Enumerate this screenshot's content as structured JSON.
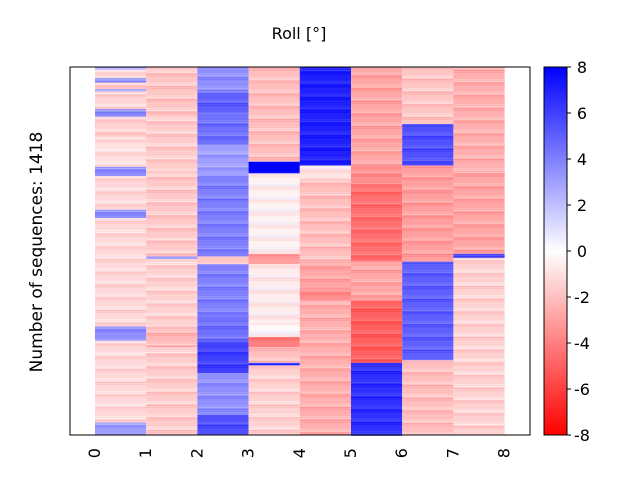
{
  "chart_data": {
    "type": "heatmap",
    "title": "Roll [°]",
    "xlabel": "",
    "ylabel": "Number of sequences: 1418",
    "x_tick_labels": [
      "0",
      "1",
      "2",
      "3",
      "4",
      "5",
      "6",
      "7",
      "8"
    ],
    "n_rows": 1418,
    "colorbar": {
      "min": -8,
      "max": 8,
      "ticks": [
        "8",
        "6",
        "4",
        "2",
        "0",
        "-2",
        "-4",
        "-6",
        "-8"
      ],
      "colormap": "bwr",
      "colors": {
        "low": "#ff0000",
        "mid": "#ffffff",
        "high": "#0000ff"
      }
    },
    "columns": [
      {
        "label": "0",
        "segments": [
          {
            "from": 0,
            "to": 10,
            "value": 3.0
          },
          {
            "from": 10,
            "to": 43,
            "value": -1.0
          },
          {
            "from": 43,
            "to": 60,
            "value": 3.5
          },
          {
            "from": 60,
            "to": 85,
            "value": -1.5
          },
          {
            "from": 85,
            "to": 95,
            "value": 3.0
          },
          {
            "from": 95,
            "to": 162,
            "value": -1.3
          },
          {
            "from": 162,
            "to": 192,
            "value": 3.5
          },
          {
            "from": 192,
            "to": 270,
            "value": -1.4
          },
          {
            "from": 270,
            "to": 385,
            "value": -1.0
          },
          {
            "from": 385,
            "to": 420,
            "value": 3.5
          },
          {
            "from": 420,
            "to": 550,
            "value": -1.2
          },
          {
            "from": 550,
            "to": 582,
            "value": 3.5
          },
          {
            "from": 582,
            "to": 1000,
            "value": -1.2
          },
          {
            "from": 1000,
            "to": 1055,
            "value": 3.5
          },
          {
            "from": 1055,
            "to": 1370,
            "value": -1.2
          },
          {
            "from": 1370,
            "to": 1418,
            "value": 3.0
          }
        ]
      },
      {
        "label": "1",
        "segments": [
          {
            "from": 0,
            "to": 185,
            "value": -1.8
          },
          {
            "from": 185,
            "to": 400,
            "value": -1.6
          },
          {
            "from": 400,
            "to": 730,
            "value": -1.7
          },
          {
            "from": 730,
            "to": 740,
            "value": 3.0
          },
          {
            "from": 740,
            "to": 1000,
            "value": -1.4
          },
          {
            "from": 1000,
            "to": 1080,
            "value": -2.2
          },
          {
            "from": 1080,
            "to": 1418,
            "value": -1.6
          }
        ]
      },
      {
        "label": "2",
        "segments": [
          {
            "from": 0,
            "to": 100,
            "value": 3.5
          },
          {
            "from": 100,
            "to": 180,
            "value": 5.0
          },
          {
            "from": 180,
            "to": 300,
            "value": 4.5
          },
          {
            "from": 300,
            "to": 420,
            "value": 3.0
          },
          {
            "from": 420,
            "to": 730,
            "value": 4.0
          },
          {
            "from": 730,
            "to": 760,
            "value": -1.8
          },
          {
            "from": 760,
            "to": 960,
            "value": 4.0
          },
          {
            "from": 960,
            "to": 1060,
            "value": 4.5
          },
          {
            "from": 1060,
            "to": 1180,
            "value": 6.0
          },
          {
            "from": 1180,
            "to": 1340,
            "value": 3.5
          },
          {
            "from": 1340,
            "to": 1418,
            "value": 5.5
          }
        ]
      },
      {
        "label": "3",
        "segments": [
          {
            "from": 0,
            "to": 365,
            "value": -2.0
          },
          {
            "from": 365,
            "to": 410,
            "value": 8.0
          },
          {
            "from": 410,
            "to": 720,
            "value": -0.4
          },
          {
            "from": 720,
            "to": 760,
            "value": -3.0
          },
          {
            "from": 760,
            "to": 980,
            "value": -0.6
          },
          {
            "from": 980,
            "to": 1040,
            "value": -0.2
          },
          {
            "from": 1040,
            "to": 1080,
            "value": -4.0
          },
          {
            "from": 1080,
            "to": 1140,
            "value": -2.0
          },
          {
            "from": 1140,
            "to": 1150,
            "value": 6.0
          },
          {
            "from": 1150,
            "to": 1418,
            "value": -1.4
          }
        ]
      },
      {
        "label": "4",
        "segments": [
          {
            "from": 0,
            "to": 380,
            "value": 7.0
          },
          {
            "from": 380,
            "to": 430,
            "value": -0.8
          },
          {
            "from": 430,
            "to": 750,
            "value": -2.0
          },
          {
            "from": 750,
            "to": 850,
            "value": -2.8
          },
          {
            "from": 850,
            "to": 900,
            "value": -3.5
          },
          {
            "from": 900,
            "to": 1418,
            "value": -2.5
          }
        ]
      },
      {
        "label": "5",
        "segments": [
          {
            "from": 0,
            "to": 380,
            "value": -2.8
          },
          {
            "from": 380,
            "to": 450,
            "value": -3.5
          },
          {
            "from": 450,
            "to": 750,
            "value": -4.5
          },
          {
            "from": 750,
            "to": 900,
            "value": -2.8
          },
          {
            "from": 900,
            "to": 1140,
            "value": -5.0
          },
          {
            "from": 1140,
            "to": 1418,
            "value": 6.5
          }
        ]
      },
      {
        "label": "6",
        "segments": [
          {
            "from": 0,
            "to": 220,
            "value": -1.8
          },
          {
            "from": 220,
            "to": 380,
            "value": 5.5
          },
          {
            "from": 380,
            "to": 750,
            "value": -3.0
          },
          {
            "from": 750,
            "to": 1130,
            "value": 5.0
          },
          {
            "from": 1130,
            "to": 1418,
            "value": -2.0
          }
        ]
      },
      {
        "label": "7",
        "segments": [
          {
            "from": 0,
            "to": 400,
            "value": -2.5
          },
          {
            "from": 400,
            "to": 720,
            "value": -2.8
          },
          {
            "from": 720,
            "to": 735,
            "value": 6.0
          },
          {
            "from": 735,
            "to": 1418,
            "value": -1.4
          }
        ]
      }
    ]
  }
}
